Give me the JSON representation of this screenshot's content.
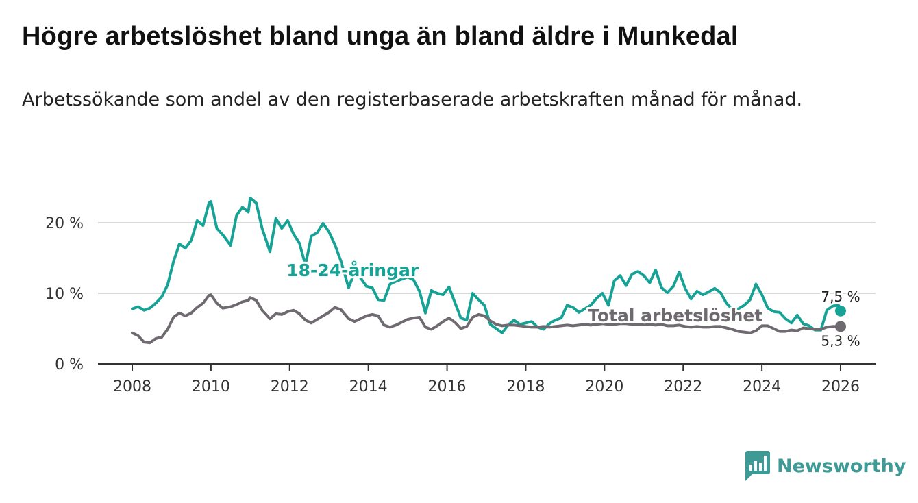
{
  "title": "Högre arbetslöshet bland unga än bland äldre i Munkedal",
  "subtitle": "Arbetssökande som andel av den registerbaserade arbetskraften månad för månad.",
  "logo": {
    "text": "Newsworthy",
    "icon": "bar-chart-speech-bubble-icon"
  },
  "colors": {
    "youth": "#16a396",
    "total": "#6e6a70",
    "grid": "#d9d9d9",
    "axis": "#333333",
    "brand": "#3d9a95"
  },
  "chart_data": {
    "type": "line",
    "title": "Högre arbetslöshet bland unga än bland äldre i Munkedal",
    "xlabel": "",
    "ylabel": "",
    "xlim": [
      2007.6,
      2026.9
    ],
    "ylim": [
      0,
      22
    ],
    "x_ticks": [
      2008,
      2010,
      2012,
      2014,
      2016,
      2018,
      2020,
      2022,
      2024,
      2026
    ],
    "y_ticks": [
      0,
      10,
      20
    ],
    "y_tick_labels": [
      "0 %",
      "10 %",
      "20 %"
    ],
    "grid": true,
    "series": [
      {
        "name": "18-24-åringar",
        "color": "#16a396",
        "end_label": "7,5 %",
        "x": [
          2008.0,
          2008.15,
          2008.3,
          2008.45,
          2008.6,
          2008.75,
          2008.9,
          2009.05,
          2009.2,
          2009.35,
          2009.5,
          2009.65,
          2009.8,
          2009.95,
          2010.0,
          2010.15,
          2010.3,
          2010.5,
          2010.65,
          2010.8,
          2010.95,
          2011.0,
          2011.15,
          2011.3,
          2011.5,
          2011.65,
          2011.8,
          2011.95,
          2012.1,
          2012.25,
          2012.4,
          2012.55,
          2012.7,
          2012.85,
          2013.0,
          2013.15,
          2013.3,
          2013.5,
          2013.65,
          2013.8,
          2013.95,
          2014.1,
          2014.25,
          2014.4,
          2014.55,
          2014.7,
          2014.85,
          2015.0,
          2015.15,
          2015.3,
          2015.45,
          2015.6,
          2015.75,
          2015.9,
          2016.05,
          2016.2,
          2016.35,
          2016.5,
          2016.65,
          2016.8,
          2016.95,
          2017.1,
          2017.25,
          2017.4,
          2017.55,
          2017.7,
          2017.85,
          2018.0,
          2018.15,
          2018.3,
          2018.45,
          2018.6,
          2018.75,
          2018.9,
          2019.05,
          2019.2,
          2019.35,
          2019.5,
          2019.65,
          2019.8,
          2019.95,
          2020.1,
          2020.25,
          2020.4,
          2020.55,
          2020.7,
          2020.85,
          2021.0,
          2021.15,
          2021.3,
          2021.45,
          2021.6,
          2021.75,
          2021.9,
          2022.05,
          2022.2,
          2022.35,
          2022.5,
          2022.65,
          2022.8,
          2022.95,
          2023.1,
          2023.25,
          2023.4,
          2023.55,
          2023.7,
          2023.85,
          2024.0,
          2024.15,
          2024.3,
          2024.45,
          2024.6,
          2024.75,
          2024.9,
          2025.05,
          2025.2,
          2025.35,
          2025.5,
          2025.65,
          2025.8,
          2025.95,
          2026.0
        ],
        "values": [
          7.8,
          8.1,
          7.6,
          7.9,
          8.6,
          9.5,
          11.2,
          14.5,
          17.0,
          16.4,
          17.5,
          20.3,
          19.6,
          22.8,
          23.0,
          19.2,
          18.3,
          16.8,
          21.0,
          22.2,
          21.5,
          23.5,
          22.8,
          19.2,
          15.9,
          20.6,
          19.2,
          20.3,
          18.4,
          17.1,
          14.0,
          18.1,
          18.6,
          19.9,
          18.7,
          16.9,
          14.6,
          10.8,
          13.0,
          12.2,
          11.0,
          10.8,
          9.1,
          9.0,
          11.3,
          11.7,
          12.0,
          12.3,
          11.9,
          10.3,
          7.2,
          10.4,
          10.0,
          9.8,
          10.9,
          8.7,
          6.5,
          6.2,
          10.0,
          9.1,
          8.3,
          5.6,
          5.0,
          4.4,
          5.5,
          6.2,
          5.6,
          5.8,
          6.0,
          5.2,
          4.9,
          5.7,
          6.2,
          6.5,
          8.3,
          8.0,
          7.3,
          7.8,
          8.3,
          9.3,
          10.0,
          8.3,
          11.8,
          12.5,
          11.1,
          12.7,
          13.1,
          12.5,
          11.5,
          13.3,
          10.8,
          10.1,
          11.0,
          13.0,
          10.7,
          9.2,
          10.3,
          9.8,
          10.2,
          10.7,
          10.1,
          8.6,
          7.7,
          7.8,
          8.3,
          9.1,
          11.3,
          9.8,
          7.9,
          7.4,
          7.3,
          6.4,
          5.8,
          6.9,
          5.7,
          5.4,
          4.8,
          4.8,
          7.6,
          8.2,
          8.3,
          7.5
        ]
      },
      {
        "name": "Total arbetslöshet",
        "color": "#6e6a70",
        "end_label": "5,3 %",
        "x": [
          2008.0,
          2008.15,
          2008.3,
          2008.45,
          2008.6,
          2008.75,
          2008.9,
          2009.05,
          2009.2,
          2009.35,
          2009.5,
          2009.65,
          2009.8,
          2009.95,
          2010.0,
          2010.15,
          2010.3,
          2010.5,
          2010.65,
          2010.8,
          2010.95,
          2011.0,
          2011.15,
          2011.3,
          2011.5,
          2011.65,
          2011.8,
          2011.95,
          2012.1,
          2012.25,
          2012.4,
          2012.55,
          2012.7,
          2012.85,
          2013.0,
          2013.15,
          2013.3,
          2013.5,
          2013.65,
          2013.8,
          2013.95,
          2014.1,
          2014.25,
          2014.4,
          2014.55,
          2014.7,
          2014.85,
          2015.0,
          2015.15,
          2015.3,
          2015.45,
          2015.6,
          2015.75,
          2015.9,
          2016.05,
          2016.2,
          2016.35,
          2016.5,
          2016.65,
          2016.8,
          2016.95,
          2017.1,
          2017.25,
          2017.4,
          2017.55,
          2017.7,
          2017.85,
          2018.0,
          2018.15,
          2018.3,
          2018.45,
          2018.6,
          2018.75,
          2018.9,
          2019.05,
          2019.2,
          2019.35,
          2019.5,
          2019.65,
          2019.8,
          2019.95,
          2020.1,
          2020.25,
          2020.4,
          2020.55,
          2020.7,
          2020.85,
          2021.0,
          2021.15,
          2021.3,
          2021.45,
          2021.6,
          2021.75,
          2021.9,
          2022.05,
          2022.2,
          2022.35,
          2022.5,
          2022.65,
          2022.8,
          2022.95,
          2023.1,
          2023.25,
          2023.4,
          2023.55,
          2023.7,
          2023.85,
          2024.0,
          2024.15,
          2024.3,
          2024.45,
          2024.6,
          2024.75,
          2024.9,
          2025.05,
          2025.2,
          2025.35,
          2025.5,
          2025.65,
          2025.8,
          2025.95,
          2026.0
        ],
        "values": [
          4.4,
          4.0,
          3.1,
          3.0,
          3.6,
          3.8,
          4.9,
          6.6,
          7.2,
          6.8,
          7.2,
          8.0,
          8.6,
          9.7,
          9.8,
          8.6,
          7.9,
          8.1,
          8.4,
          8.8,
          9.0,
          9.4,
          9.0,
          7.6,
          6.4,
          7.1,
          7.0,
          7.4,
          7.6,
          7.1,
          6.2,
          5.8,
          6.3,
          6.8,
          7.3,
          8.0,
          7.7,
          6.4,
          6.0,
          6.4,
          6.8,
          7.0,
          6.8,
          5.5,
          5.2,
          5.5,
          5.9,
          6.3,
          6.5,
          6.6,
          5.2,
          4.9,
          5.4,
          6.0,
          6.5,
          5.9,
          5.0,
          5.3,
          6.6,
          7.0,
          6.8,
          6.1,
          5.6,
          5.4,
          5.5,
          5.5,
          5.4,
          5.3,
          5.2,
          5.2,
          5.3,
          5.2,
          5.3,
          5.4,
          5.5,
          5.4,
          5.5,
          5.6,
          5.5,
          5.6,
          5.7,
          5.6,
          5.6,
          5.7,
          5.7,
          5.6,
          5.6,
          5.6,
          5.6,
          5.5,
          5.6,
          5.4,
          5.4,
          5.5,
          5.3,
          5.2,
          5.3,
          5.2,
          5.2,
          5.3,
          5.3,
          5.1,
          4.9,
          4.6,
          4.5,
          4.4,
          4.7,
          5.4,
          5.4,
          5.0,
          4.6,
          4.6,
          4.8,
          4.7,
          5.1,
          5.0,
          4.9,
          4.9,
          5.2,
          5.3,
          5.3,
          5.3
        ]
      }
    ],
    "annotations": [
      {
        "text": "18-24-åringar",
        "series": "18-24-åringar",
        "x": 2013.6,
        "y": 13.3
      },
      {
        "text": "Total arbetslöshet",
        "series": "Total arbetslöshet",
        "x": 2021.8,
        "y": 6.9
      }
    ]
  }
}
